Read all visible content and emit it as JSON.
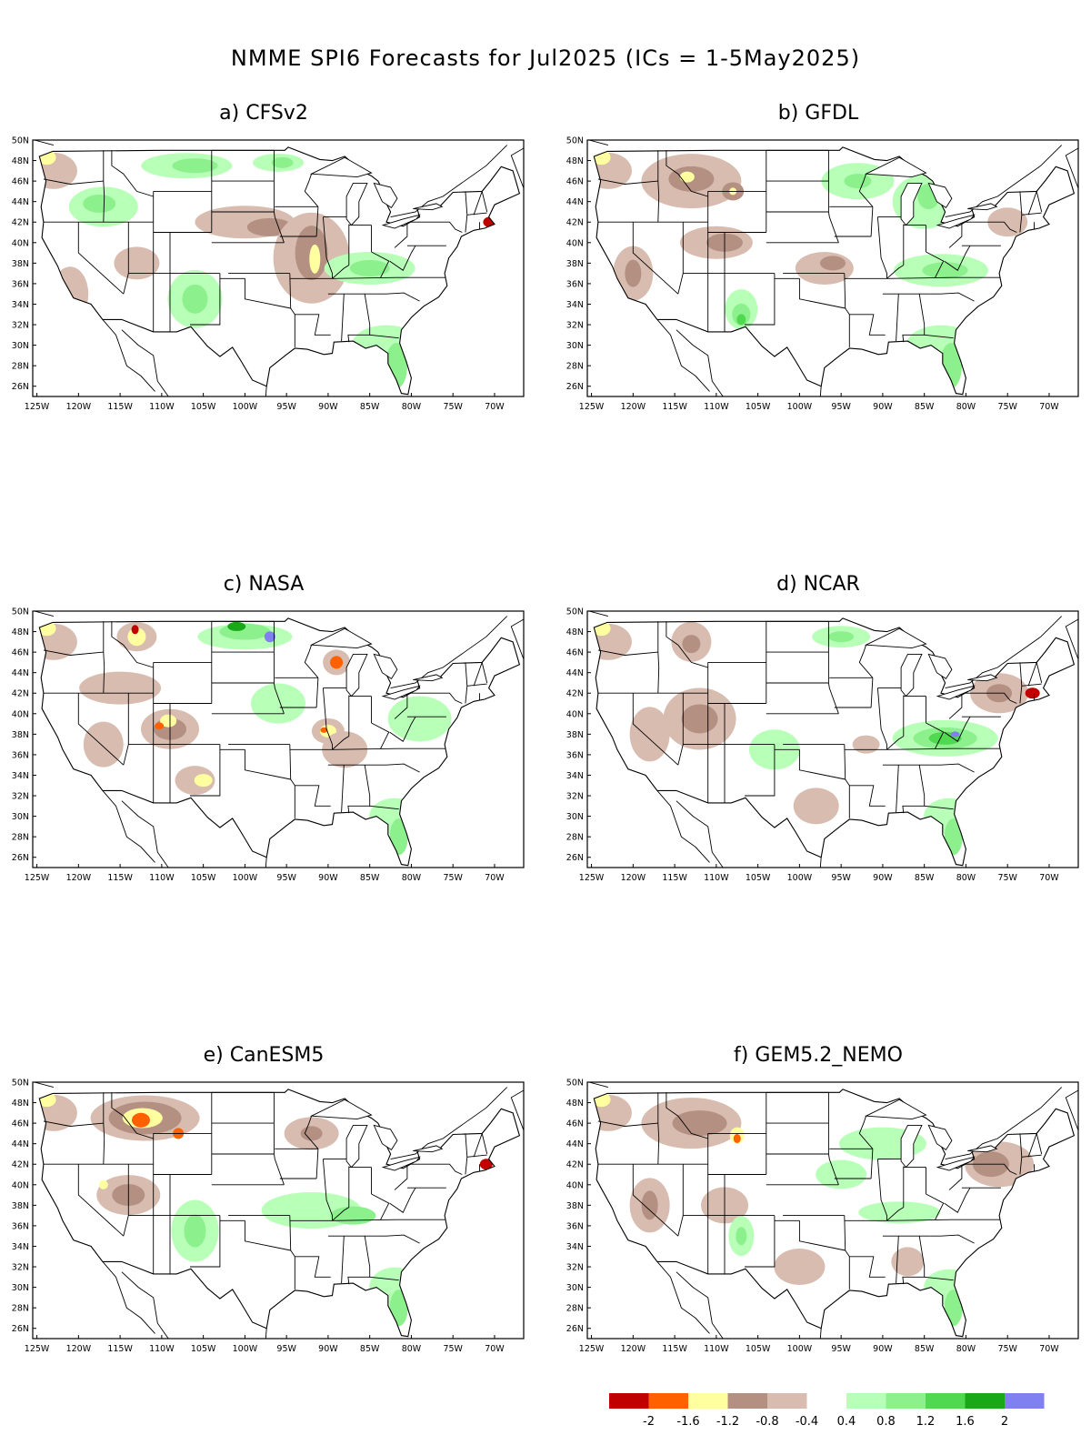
{
  "title": "NMME SPI6 Forecasts for Jul2025 (ICs = 1-5May2025)",
  "panels": [
    {
      "label": "a) CFSv2"
    },
    {
      "label": "b) GFDL"
    },
    {
      "label": "c) NASA"
    },
    {
      "label": "d) NCAR"
    },
    {
      "label": "e) CanESM5"
    },
    {
      "label": "f) GEM5.2_NEMO"
    }
  ],
  "lat_ticks": [
    "26N",
    "28N",
    "30N",
    "32N",
    "34N",
    "36N",
    "38N",
    "40N",
    "42N",
    "44N",
    "46N",
    "48N",
    "50N"
  ],
  "lon_ticks": [
    "125W",
    "120W",
    "115W",
    "110W",
    "105W",
    "100W",
    "95W",
    "90W",
    "85W",
    "80W",
    "75W",
    "70W"
  ],
  "legend": {
    "colors": [
      "#c00000",
      "#ff6000",
      "#ffffa0",
      "#b49082",
      "#d8bcb0",
      "#ffffff",
      "#b8ffb8",
      "#8cf08c",
      "#50d850",
      "#18a818",
      "#8080f0"
    ],
    "labels": [
      "-2",
      "-1.6",
      "-1.2",
      "-0.8",
      "-0.4",
      "0.4",
      "0.8",
      "1.2",
      "1.6",
      "2"
    ]
  }
}
